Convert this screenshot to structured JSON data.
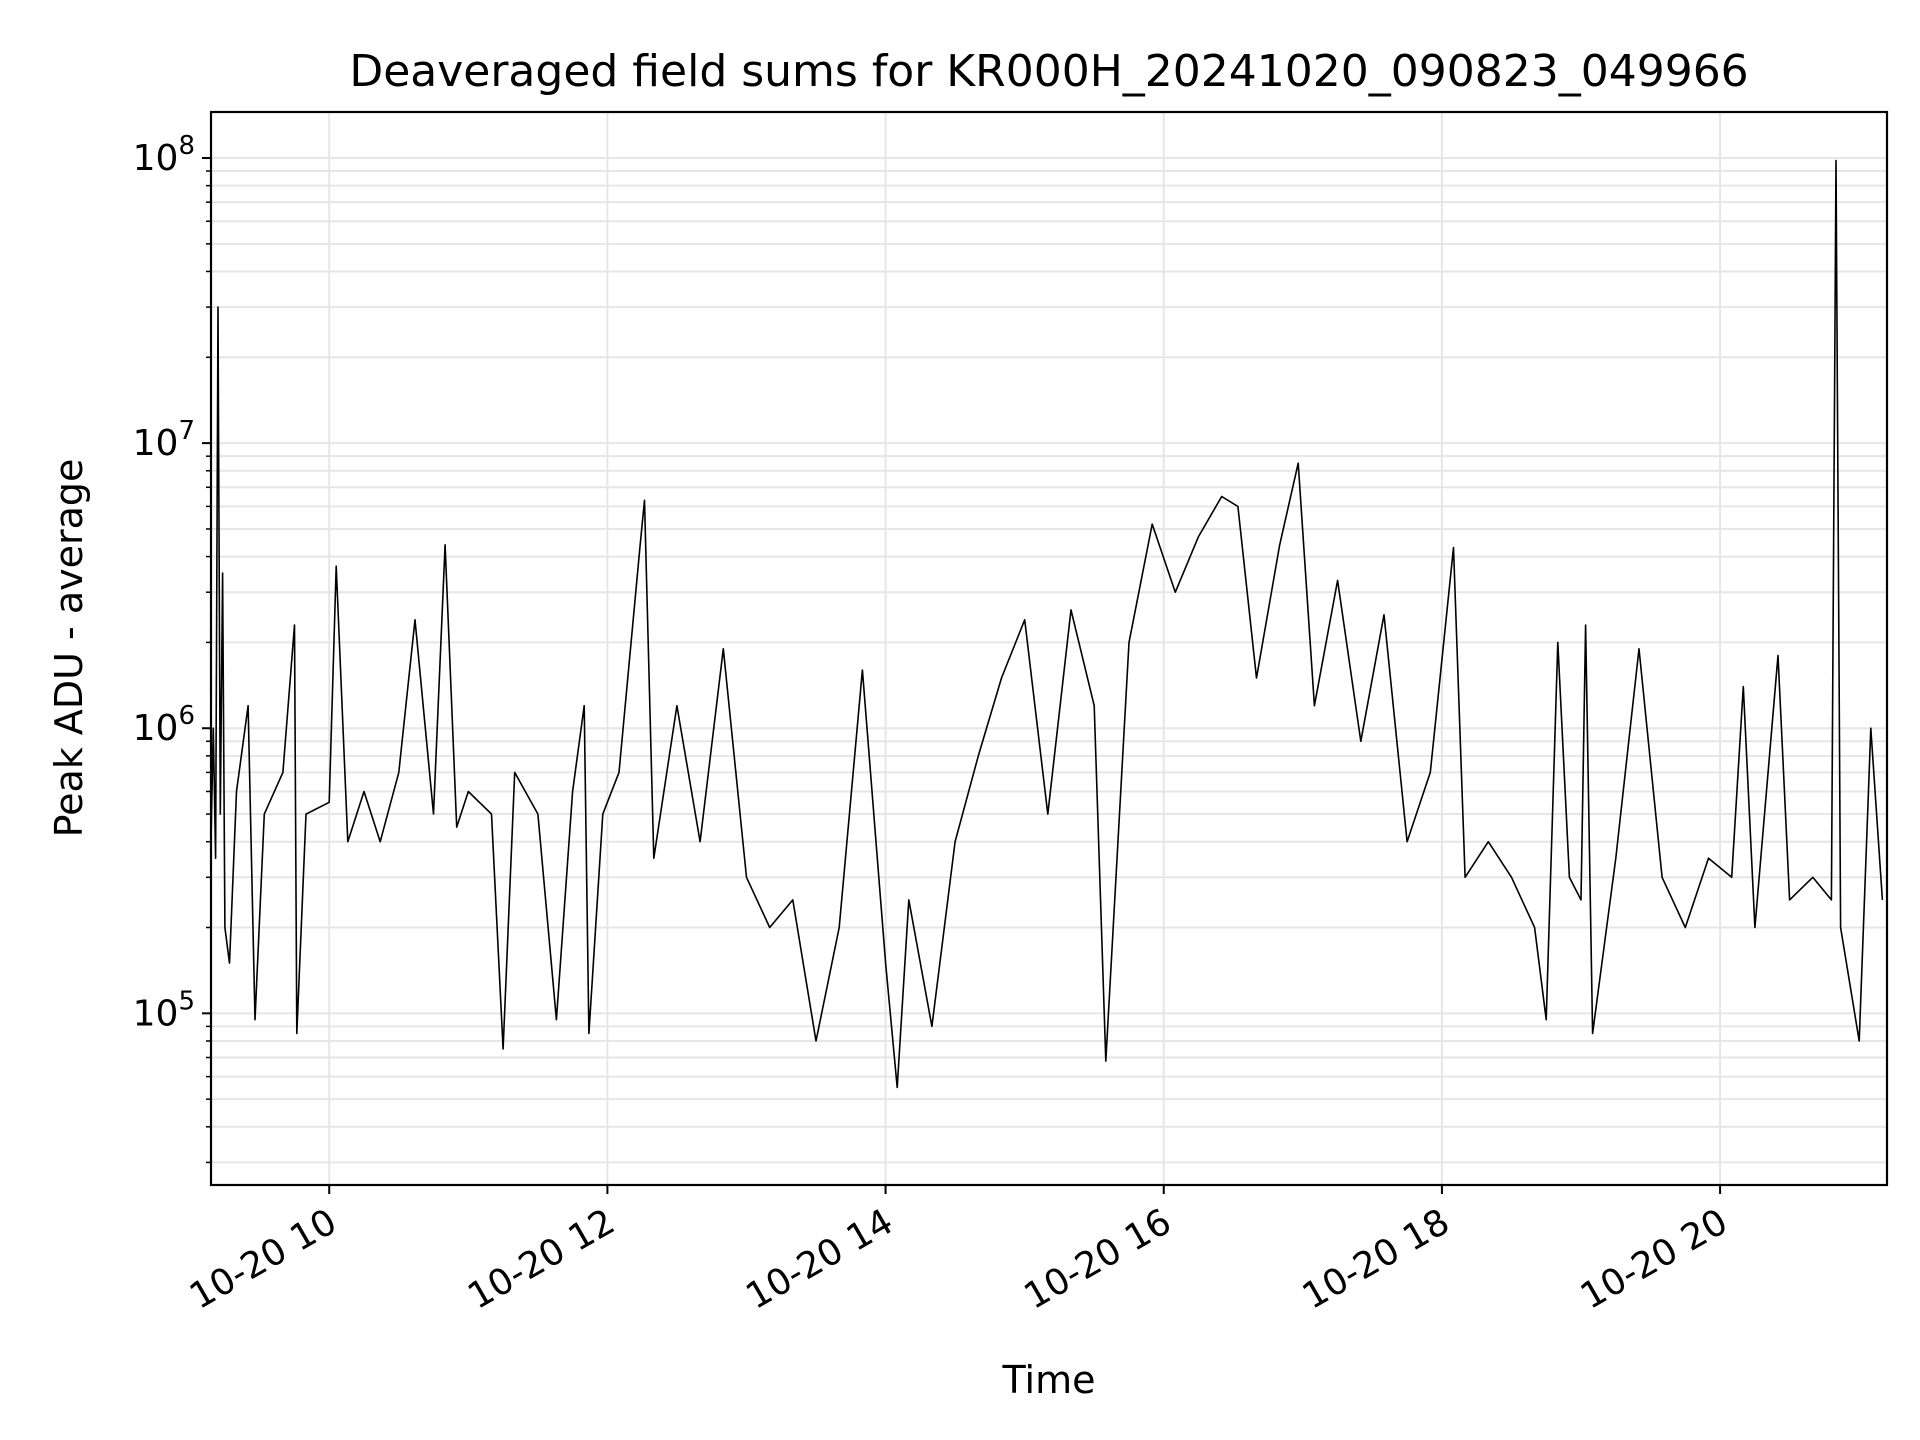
{
  "chart_data": {
    "type": "line",
    "title": "Deaveraged field sums for KR000H_20241020_090823_049966",
    "xlabel": "Time",
    "ylabel": "Peak ADU - average",
    "yscale": "log",
    "grid": true,
    "x_tick_labels": [
      "10-20 10",
      "10-20 12",
      "10-20 14",
      "10-20 16",
      "10-20 18",
      "10-20 20"
    ],
    "x_ticks_time": [
      "2024-10-20 10:00",
      "2024-10-20 12:00",
      "2024-10-20 14:00",
      "2024-10-20 16:00",
      "2024-10-20 18:00",
      "2024-10-20 20:00"
    ],
    "y_ticks": [
      {
        "base": "10",
        "exp": "5",
        "value": 100000
      },
      {
        "base": "10",
        "exp": "6",
        "value": 1000000
      },
      {
        "base": "10",
        "exp": "7",
        "value": 10000000
      },
      {
        "base": "10",
        "exp": "8",
        "value": 100000000
      }
    ],
    "xlim": [
      "2024-10-20 09:09",
      "2024-10-20 21:12"
    ],
    "ylim": [
      25000,
      145000000
    ],
    "series": [
      {
        "color": "#000000",
        "points": [
          [
            "2024-10-20 09:09",
            400000
          ],
          [
            "2024-10-20 09:10",
            1000000
          ],
          [
            "2024-10-20 09:11",
            350000
          ],
          [
            "2024-10-20 09:12",
            30000000
          ],
          [
            "2024-10-20 09:13",
            500000
          ],
          [
            "2024-10-20 09:14",
            3500000
          ],
          [
            "2024-10-20 09:15",
            200000
          ],
          [
            "2024-10-20 09:17",
            150000
          ],
          [
            "2024-10-20 09:20",
            600000
          ],
          [
            "2024-10-20 09:25",
            1200000
          ],
          [
            "2024-10-20 09:28",
            95000
          ],
          [
            "2024-10-20 09:32",
            500000
          ],
          [
            "2024-10-20 09:40",
            700000
          ],
          [
            "2024-10-20 09:45",
            2300000
          ],
          [
            "2024-10-20 09:46",
            85000
          ],
          [
            "2024-10-20 09:50",
            500000
          ],
          [
            "2024-10-20 10:00",
            550000
          ],
          [
            "2024-10-20 10:03",
            3700000
          ],
          [
            "2024-10-20 10:08",
            400000
          ],
          [
            "2024-10-20 10:15",
            600000
          ],
          [
            "2024-10-20 10:22",
            400000
          ],
          [
            "2024-10-20 10:30",
            700000
          ],
          [
            "2024-10-20 10:37",
            2400000
          ],
          [
            "2024-10-20 10:45",
            500000
          ],
          [
            "2024-10-20 10:50",
            4400000
          ],
          [
            "2024-10-20 10:55",
            450000
          ],
          [
            "2024-10-20 11:00",
            600000
          ],
          [
            "2024-10-20 11:10",
            500000
          ],
          [
            "2024-10-20 11:15",
            75000
          ],
          [
            "2024-10-20 11:20",
            700000
          ],
          [
            "2024-10-20 11:30",
            500000
          ],
          [
            "2024-10-20 11:38",
            95000
          ],
          [
            "2024-10-20 11:45",
            600000
          ],
          [
            "2024-10-20 11:50",
            1200000
          ],
          [
            "2024-10-20 11:52",
            85000
          ],
          [
            "2024-10-20 11:58",
            500000
          ],
          [
            "2024-10-20 12:05",
            700000
          ],
          [
            "2024-10-20 12:14",
            4300000
          ],
          [
            "2024-10-20 12:16",
            6300000
          ],
          [
            "2024-10-20 12:20",
            350000
          ],
          [
            "2024-10-20 12:30",
            1200000
          ],
          [
            "2024-10-20 12:40",
            400000
          ],
          [
            "2024-10-20 12:50",
            1900000
          ],
          [
            "2024-10-20 13:00",
            300000
          ],
          [
            "2024-10-20 13:10",
            200000
          ],
          [
            "2024-10-20 13:20",
            250000
          ],
          [
            "2024-10-20 13:30",
            80000
          ],
          [
            "2024-10-20 13:40",
            200000
          ],
          [
            "2024-10-20 13:50",
            1600000
          ],
          [
            "2024-10-20 14:00",
            150000
          ],
          [
            "2024-10-20 14:05",
            55000
          ],
          [
            "2024-10-20 14:10",
            250000
          ],
          [
            "2024-10-20 14:20",
            90000
          ],
          [
            "2024-10-20 14:30",
            400000
          ],
          [
            "2024-10-20 14:40",
            800000
          ],
          [
            "2024-10-20 14:50",
            1500000
          ],
          [
            "2024-10-20 15:00",
            2400000
          ],
          [
            "2024-10-20 15:10",
            500000
          ],
          [
            "2024-10-20 15:20",
            2600000
          ],
          [
            "2024-10-20 15:30",
            1200000
          ],
          [
            "2024-10-20 15:35",
            68000
          ],
          [
            "2024-10-20 15:45",
            2000000
          ],
          [
            "2024-10-20 15:55",
            5200000
          ],
          [
            "2024-10-20 16:05",
            3000000
          ],
          [
            "2024-10-20 16:15",
            4700000
          ],
          [
            "2024-10-20 16:25",
            6500000
          ],
          [
            "2024-10-20 16:32",
            6000000
          ],
          [
            "2024-10-20 16:40",
            1500000
          ],
          [
            "2024-10-20 16:50",
            4400000
          ],
          [
            "2024-10-20 16:58",
            8500000
          ],
          [
            "2024-10-20 17:05",
            1200000
          ],
          [
            "2024-10-20 17:15",
            3300000
          ],
          [
            "2024-10-20 17:25",
            900000
          ],
          [
            "2024-10-20 17:35",
            2500000
          ],
          [
            "2024-10-20 17:45",
            400000
          ],
          [
            "2024-10-20 17:55",
            700000
          ],
          [
            "2024-10-20 18:05",
            4300000
          ],
          [
            "2024-10-20 18:10",
            300000
          ],
          [
            "2024-10-20 18:20",
            400000
          ],
          [
            "2024-10-20 18:30",
            300000
          ],
          [
            "2024-10-20 18:40",
            200000
          ],
          [
            "2024-10-20 18:45",
            95000
          ],
          [
            "2024-10-20 18:50",
            2000000
          ],
          [
            "2024-10-20 18:55",
            300000
          ],
          [
            "2024-10-20 19:00",
            250000
          ],
          [
            "2024-10-20 19:02",
            2300000
          ],
          [
            "2024-10-20 19:05",
            85000
          ],
          [
            "2024-10-20 19:15",
            350000
          ],
          [
            "2024-10-20 19:25",
            1900000
          ],
          [
            "2024-10-20 19:35",
            300000
          ],
          [
            "2024-10-20 19:45",
            200000
          ],
          [
            "2024-10-20 19:55",
            350000
          ],
          [
            "2024-10-20 20:05",
            300000
          ],
          [
            "2024-10-20 20:10",
            1400000
          ],
          [
            "2024-10-20 20:15",
            200000
          ],
          [
            "2024-10-20 20:25",
            1800000
          ],
          [
            "2024-10-20 20:30",
            250000
          ],
          [
            "2024-10-20 20:40",
            300000
          ],
          [
            "2024-10-20 20:48",
            250000
          ],
          [
            "2024-10-20 20:50",
            98000000
          ],
          [
            "2024-10-20 20:52",
            200000
          ],
          [
            "2024-10-20 21:00",
            80000
          ],
          [
            "2024-10-20 21:05",
            1000000
          ],
          [
            "2024-10-20 21:10",
            250000
          ]
        ]
      }
    ]
  }
}
